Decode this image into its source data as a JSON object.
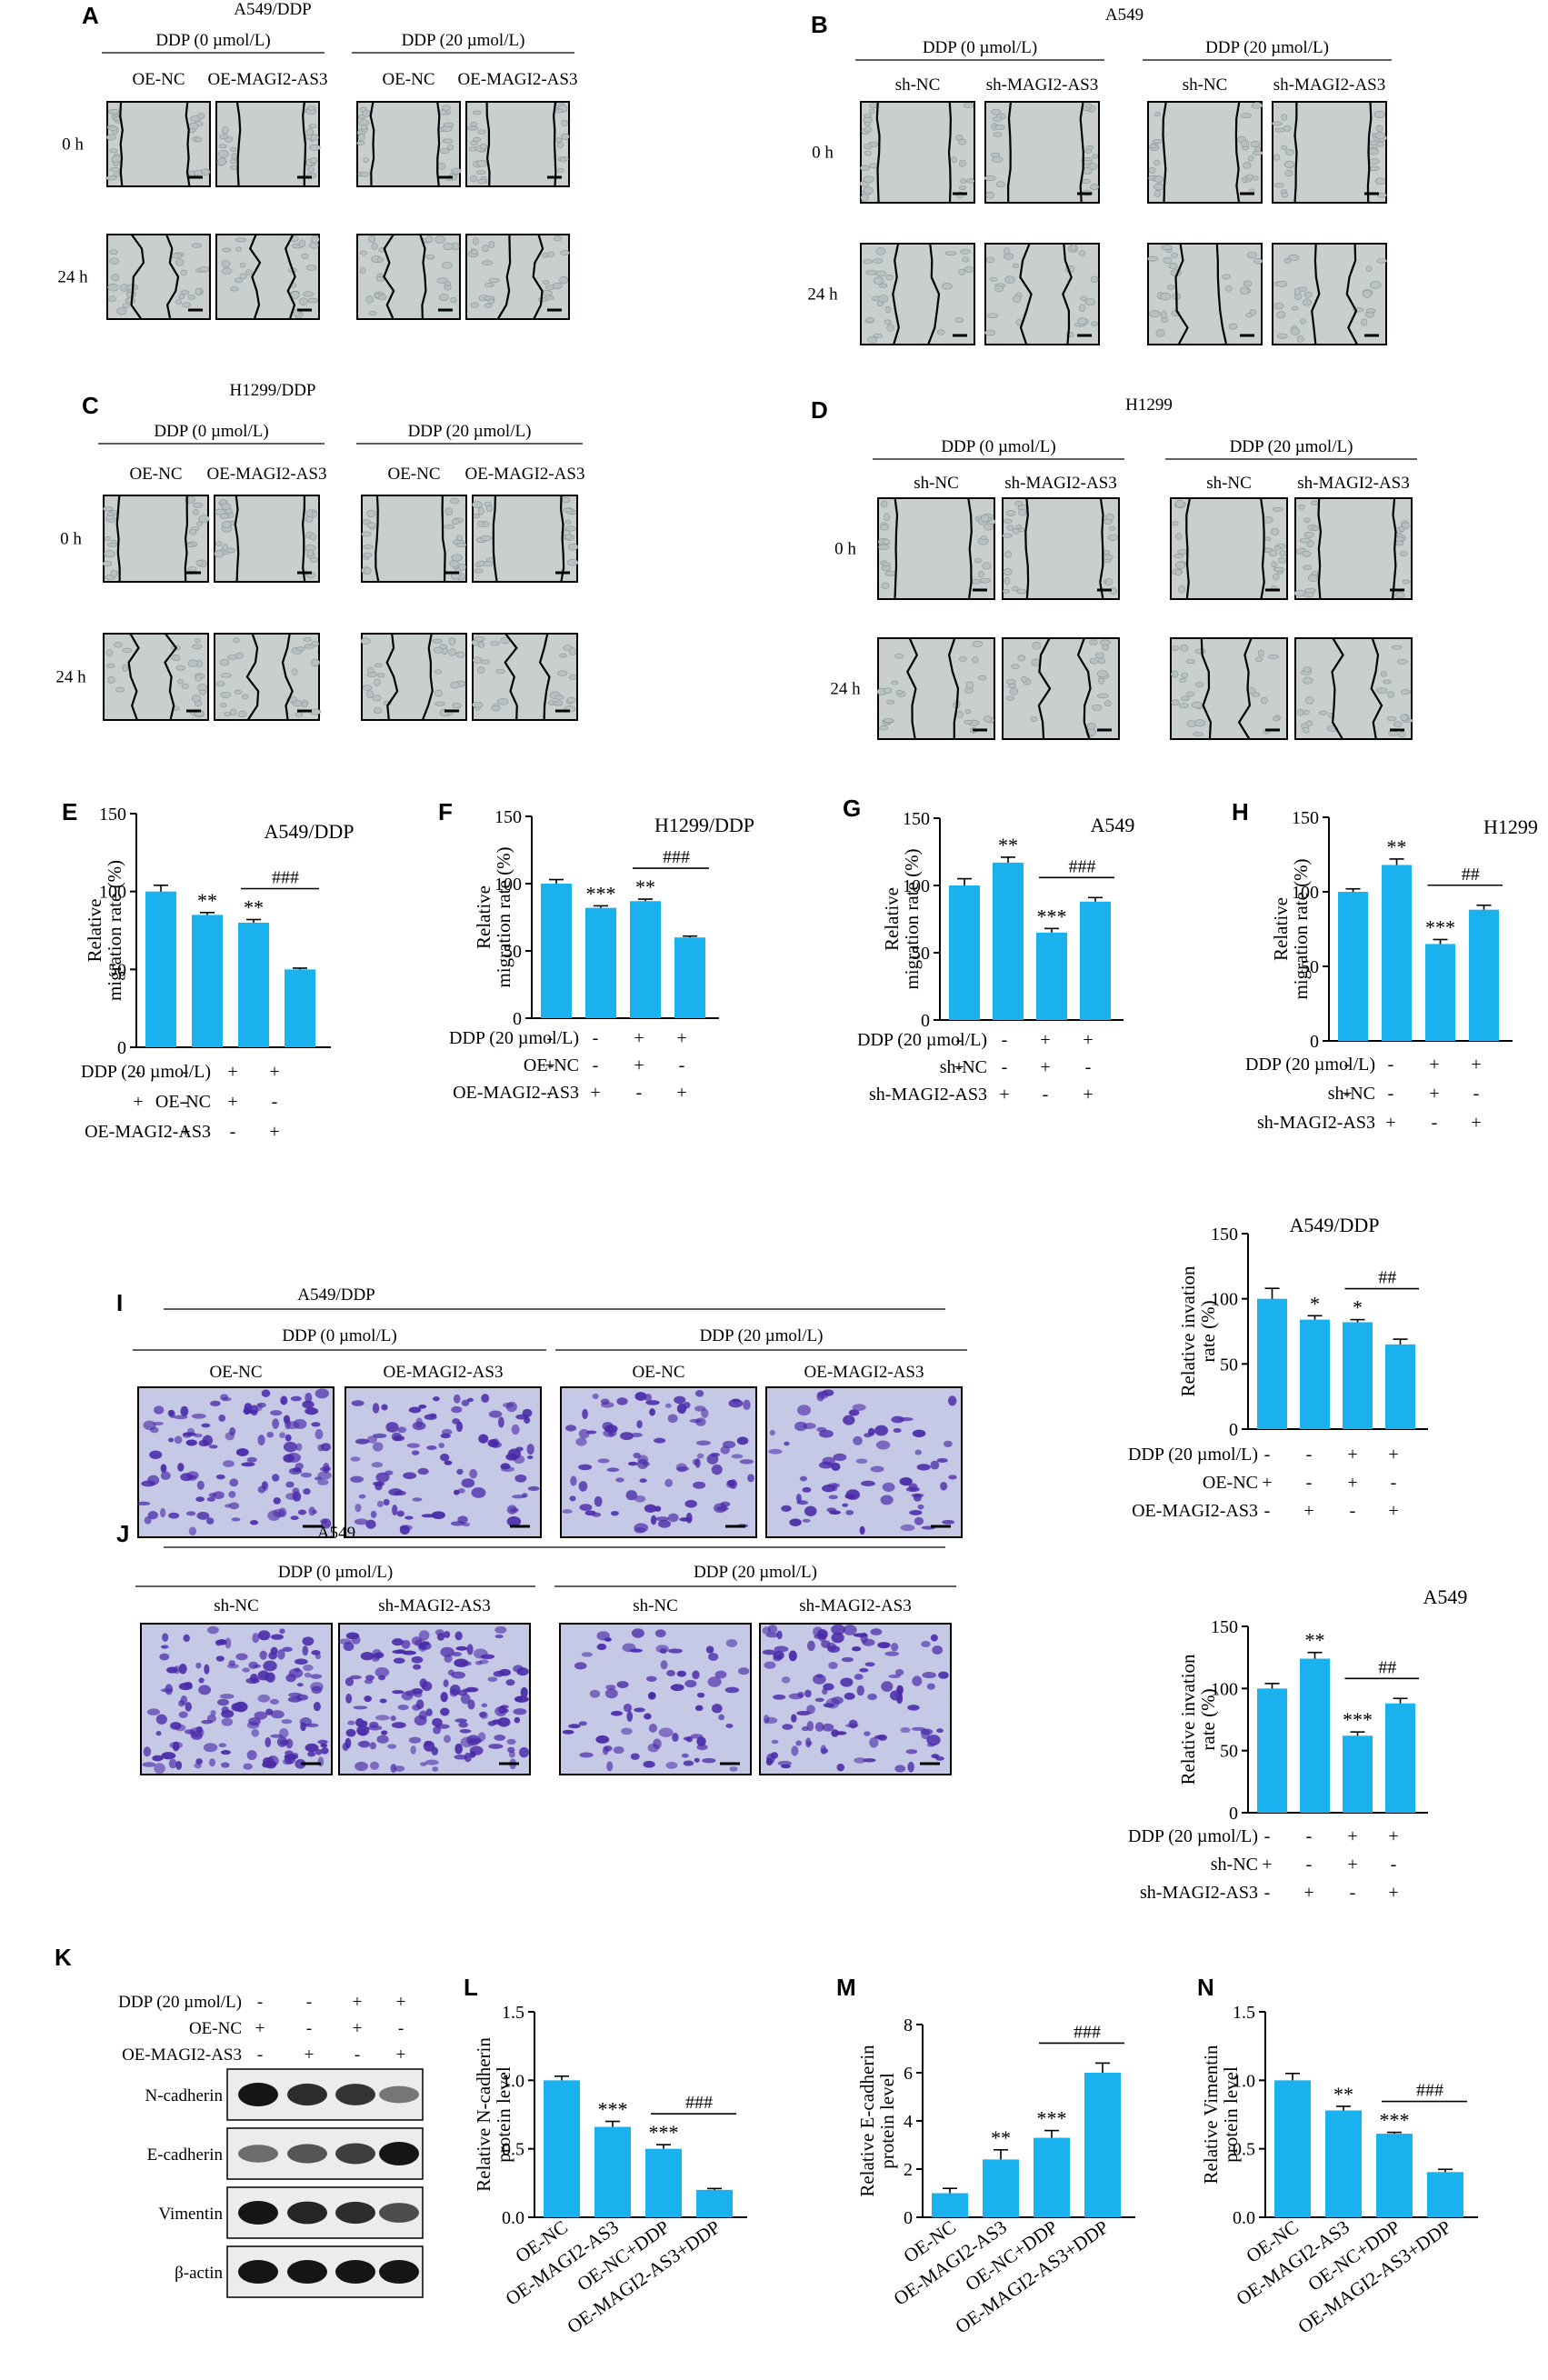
{
  "colors": {
    "bar": "#19b2ee",
    "micro_bg": "#c9cfcf",
    "micro_cells": "#b8c0c2",
    "stain_bg": "#c6c9e6",
    "stain": "#4a2aa8",
    "blot_bg": "#ececec",
    "band": "#151515"
  },
  "panels": {
    "A": {
      "letter": "A",
      "title": "A549/DDP",
      "groups": [
        "DDP (0 µmol/L)",
        "DDP (20 µmol/L)"
      ],
      "labels": [
        "OE-NC",
        "OE-MAGI2-AS3",
        "OE-NC",
        "OE-MAGI2-AS3"
      ],
      "rows": [
        "0 h",
        "24 h"
      ]
    },
    "B": {
      "letter": "B",
      "title": "A549",
      "groups": [
        "DDP (0 µmol/L)",
        "DDP (20 µmol/L)"
      ],
      "labels": [
        "sh-NC",
        "sh-MAGI2-AS3",
        "sh-NC",
        "sh-MAGI2-AS3"
      ],
      "rows": [
        "0 h",
        "24 h"
      ]
    },
    "C": {
      "letter": "C",
      "title": "H1299/DDP",
      "groups": [
        "DDP (0 µmol/L)",
        "DDP (20 µmol/L)"
      ],
      "labels": [
        "OE-NC",
        "OE-MAGI2-AS3",
        "OE-NC",
        "OE-MAGI2-AS3"
      ],
      "rows": [
        "0 h",
        "24 h"
      ]
    },
    "D": {
      "letter": "D",
      "title": "H1299",
      "groups": [
        "DDP (0 µmol/L)",
        "DDP (20 µmol/L)"
      ],
      "labels": [
        "sh-NC",
        "sh-MAGI2-AS3",
        "sh-NC",
        "sh-MAGI2-AS3"
      ],
      "rows": [
        "0 h",
        "24 h"
      ]
    },
    "I": {
      "letter": "I",
      "title": "A549/DDP",
      "groups": [
        "DDP (0 µmol/L)",
        "DDP (20 µmol/L)"
      ],
      "labels": [
        "OE-NC",
        "OE-MAGI2-AS3",
        "OE-NC",
        "OE-MAGI2-AS3"
      ]
    },
    "J": {
      "letter": "J",
      "title": "A549",
      "groups": [
        "DDP (0 µmol/L)",
        "DDP (20 µmol/L)"
      ],
      "labels": [
        "sh-NC",
        "sh-MAGI2-AS3",
        "sh-NC",
        "sh-MAGI2-AS3"
      ]
    },
    "K": {
      "letter": "K",
      "rows": [
        {
          "label": "DDP (20 µmol/L)",
          "signs": [
            "-",
            "-",
            "+",
            "+"
          ]
        },
        {
          "label": "OE-NC",
          "signs": [
            "+",
            "-",
            "+",
            "-"
          ]
        },
        {
          "label": "OE-MAGI2-AS3",
          "signs": [
            "-",
            "+",
            "-",
            "+"
          ]
        }
      ],
      "proteins": [
        {
          "name": "N-cadherin",
          "intensity": [
            1.0,
            0.85,
            0.82,
            0.4
          ]
        },
        {
          "name": "E-cadherin",
          "intensity": [
            0.45,
            0.6,
            0.75,
            1.0
          ]
        },
        {
          "name": "Vimentin",
          "intensity": [
            1.0,
            0.9,
            0.85,
            0.65
          ]
        },
        {
          "name": "β-actin",
          "intensity": [
            1.0,
            1.0,
            1.0,
            1.0
          ]
        }
      ]
    }
  },
  "chart_data": [
    {
      "id": "E",
      "letter": "E",
      "type": "bar",
      "title": "A549/DDP",
      "ylabel": "Relative migration rate (%)",
      "ylim": [
        0,
        150
      ],
      "yticks": [
        0,
        50,
        100,
        150
      ],
      "values": [
        100,
        85,
        80,
        50
      ],
      "errors": [
        4,
        1.5,
        2,
        0.8
      ],
      "stars": [
        "",
        "**",
        "**",
        ""
      ],
      "hash": "###",
      "conds": [
        {
          "label": "DDP (20 µmol/L)",
          "signs": [
            "-",
            "-",
            "+",
            "+"
          ]
        },
        {
          "label": "OE-NC",
          "signs": [
            "+",
            "-",
            "+",
            "-"
          ]
        },
        {
          "label": "OE-MAGI2-AS3",
          "signs": [
            "-",
            "+",
            "-",
            "+"
          ]
        }
      ]
    },
    {
      "id": "F",
      "letter": "F",
      "type": "bar",
      "title": "H1299/DDP",
      "ylabel": "Relative migration rate (%)",
      "ylim": [
        0,
        150
      ],
      "yticks": [
        0,
        50,
        100,
        150
      ],
      "values": [
        100,
        82,
        87,
        60
      ],
      "errors": [
        3,
        1.5,
        1.5,
        1
      ],
      "stars": [
        "",
        "***",
        "**",
        ""
      ],
      "hash": "###",
      "conds": [
        {
          "label": "DDP (20 µmol/L)",
          "signs": [
            "-",
            "-",
            "+",
            "+"
          ]
        },
        {
          "label": "OE-NC",
          "signs": [
            "+",
            "-",
            "+",
            "-"
          ]
        },
        {
          "label": "OE-MAGI2-AS3",
          "signs": [
            "-",
            "+",
            "-",
            "+"
          ]
        }
      ]
    },
    {
      "id": "G",
      "letter": "G",
      "type": "bar",
      "title": "A549",
      "ylabel": "Relative migration rate (%)",
      "ylim": [
        0,
        150
      ],
      "yticks": [
        0,
        50,
        100,
        150
      ],
      "values": [
        100,
        117,
        65,
        88
      ],
      "errors": [
        5,
        4,
        3,
        3
      ],
      "stars": [
        "",
        "**",
        "***",
        ""
      ],
      "hash": "###",
      "conds": [
        {
          "label": "DDP (20 µmol/L)",
          "signs": [
            "-",
            "-",
            "+",
            "+"
          ]
        },
        {
          "label": "sh-NC",
          "signs": [
            "+",
            "-",
            "+",
            "-"
          ]
        },
        {
          "label": "sh-MAGI2-AS3",
          "signs": [
            "-",
            "+",
            "-",
            "+"
          ]
        }
      ]
    },
    {
      "id": "H",
      "letter": "H",
      "type": "bar",
      "title": "H1299",
      "ylabel": "Relative migration rate (%)",
      "ylim": [
        0,
        150
      ],
      "yticks": [
        0,
        50,
        100,
        150
      ],
      "values": [
        100,
        118,
        65,
        88
      ],
      "errors": [
        2,
        4,
        3,
        3
      ],
      "stars": [
        "",
        "**",
        "***",
        ""
      ],
      "hash": "##",
      "conds": [
        {
          "label": "DDP (20 µmol/L)",
          "signs": [
            "-",
            "-",
            "+",
            "+"
          ]
        },
        {
          "label": "sh-NC",
          "signs": [
            "+",
            "-",
            "+",
            "-"
          ]
        },
        {
          "label": "sh-MAGI2-AS3",
          "signs": [
            "-",
            "+",
            "-",
            "+"
          ]
        }
      ]
    },
    {
      "id": "Ic",
      "letter": "",
      "type": "bar",
      "title": "A549/DDP",
      "ylabel": "Relative invation rate (%)",
      "ylim": [
        0,
        150
      ],
      "yticks": [
        0,
        50,
        100,
        150
      ],
      "values": [
        100,
        84,
        82,
        65
      ],
      "errors": [
        8,
        3,
        2,
        4
      ],
      "stars": [
        "",
        "*",
        "*",
        ""
      ],
      "hash": "##",
      "conds": [
        {
          "label": "DDP (20 µmol/L)",
          "signs": [
            "-",
            "-",
            "+",
            "+"
          ]
        },
        {
          "label": "OE-NC",
          "signs": [
            "+",
            "-",
            "+",
            "-"
          ]
        },
        {
          "label": "OE-MAGI2-AS3",
          "signs": [
            "-",
            "+",
            "-",
            "+"
          ]
        }
      ]
    },
    {
      "id": "Jc",
      "letter": "",
      "type": "bar",
      "title": "A549",
      "ylabel": "Relative invation rate (%)",
      "ylim": [
        0,
        150
      ],
      "yticks": [
        0,
        50,
        100,
        150
      ],
      "values": [
        100,
        124,
        62,
        88
      ],
      "errors": [
        4,
        5,
        3,
        4
      ],
      "stars": [
        "",
        "**",
        "***",
        ""
      ],
      "hash": "##",
      "conds": [
        {
          "label": "DDP (20 µmol/L)",
          "signs": [
            "-",
            "-",
            "+",
            "+"
          ]
        },
        {
          "label": "sh-NC",
          "signs": [
            "+",
            "-",
            "+",
            "-"
          ]
        },
        {
          "label": "sh-MAGI2-AS3",
          "signs": [
            "-",
            "+",
            "-",
            "+"
          ]
        }
      ]
    },
    {
      "id": "L",
      "letter": "L",
      "type": "bar",
      "title": "",
      "ylabel": "Relative N-cadherin protein level",
      "ylim": [
        0,
        1.5
      ],
      "yticks": [
        "0.0",
        "0.5",
        "1.0",
        "1.5"
      ],
      "values": [
        1.0,
        0.66,
        0.5,
        0.2
      ],
      "errors": [
        0.03,
        0.04,
        0.03,
        0.01
      ],
      "stars": [
        "",
        "***",
        "***",
        ""
      ],
      "hash": "###",
      "categories": [
        "OE-NC",
        "OE-MAGI2-AS3",
        "OE-NC+DDP",
        "OE-MAGI2-AS3+DDP"
      ]
    },
    {
      "id": "M",
      "letter": "M",
      "type": "bar",
      "title": "",
      "ylabel": "Relative E-cadherin protein level",
      "ylim": [
        0,
        8
      ],
      "yticks": [
        "0",
        "2",
        "4",
        "6",
        "8"
      ],
      "values": [
        1.0,
        2.4,
        3.3,
        6.0
      ],
      "errors": [
        0.2,
        0.4,
        0.3,
        0.4
      ],
      "stars": [
        "",
        "**",
        "***",
        ""
      ],
      "hash": "###",
      "categories": [
        "OE-NC",
        "OE-MAGI2-AS3",
        "OE-NC+DDP",
        "OE-MAGI2-AS3+DDP"
      ]
    },
    {
      "id": "N",
      "letter": "N",
      "type": "bar",
      "title": "",
      "ylabel": "Relative Vimentin protein level",
      "ylim": [
        0,
        1.5
      ],
      "yticks": [
        "0.0",
        "0.5",
        "1.0",
        "1.5"
      ],
      "values": [
        1.0,
        0.78,
        0.61,
        0.33
      ],
      "errors": [
        0.05,
        0.03,
        0.01,
        0.02
      ],
      "stars": [
        "",
        "**",
        "***",
        ""
      ],
      "hash": "###",
      "categories": [
        "OE-NC",
        "OE-MAGI2-AS3",
        "OE-NC+DDP",
        "OE-MAGI2-AS3+DDP"
      ]
    }
  ]
}
